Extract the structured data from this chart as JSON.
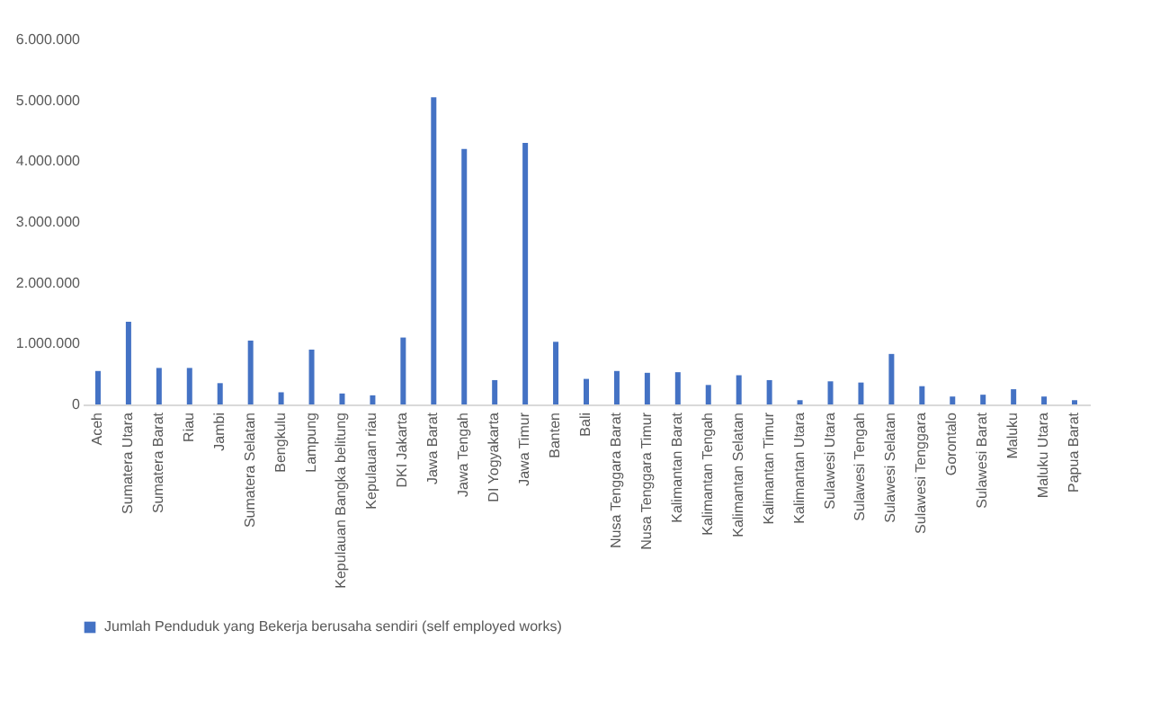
{
  "chart_data": {
    "type": "bar",
    "categories": [
      "Aceh",
      "Sumatera Utara",
      "Sumatera Barat",
      "Riau",
      "Jambi",
      "Sumatera Selatan",
      "Bengkulu",
      "Lampung",
      "Kepulauan Bangka belitung",
      "Kepulauan riau",
      "DKI Jakarta",
      "Jawa Barat",
      "Jawa Tengah",
      "DI Yogyakarta",
      "Jawa Timur",
      "Banten",
      "Bali",
      "Nusa Tenggara Barat",
      "Nusa Tenggara Timur",
      "Kalimantan Barat",
      "Kalimantan Tengah",
      "Kalimantan Selatan",
      "Kalimantan Timur",
      "Kalimantan Utara",
      "Sulawesi Utara",
      "Sulawesi Tengah",
      "Sulawesi Selatan",
      "Sulawesi Tenggara",
      "Gorontalo",
      "Sulawesi Barat",
      "Maluku",
      "Maluku Utara",
      "Papua Barat"
    ],
    "series": [
      {
        "name": "Jumlah Penduduk yang Bekerja berusaha sendiri (self employed works)",
        "color": "#4472c4",
        "values": [
          550000,
          1360000,
          600000,
          600000,
          350000,
          1050000,
          200000,
          900000,
          180000,
          150000,
          1100000,
          5050000,
          4200000,
          400000,
          4300000,
          1030000,
          420000,
          550000,
          520000,
          530000,
          320000,
          480000,
          400000,
          70000,
          380000,
          360000,
          830000,
          300000,
          130000,
          160000,
          250000,
          130000,
          70000
        ]
      }
    ],
    "ylim": [
      0,
      6000000
    ],
    "yticks": [
      {
        "value": 0,
        "label": "0"
      },
      {
        "value": 1000000,
        "label": "1.000.000"
      },
      {
        "value": 2000000,
        "label": "2.000.000"
      },
      {
        "value": 3000000,
        "label": "3.000.000"
      },
      {
        "value": 4000000,
        "label": "4.000.000"
      },
      {
        "value": 5000000,
        "label": "5.000.000"
      },
      {
        "value": 6000000,
        "label": "6.000.000"
      }
    ],
    "legend": "bottom"
  }
}
